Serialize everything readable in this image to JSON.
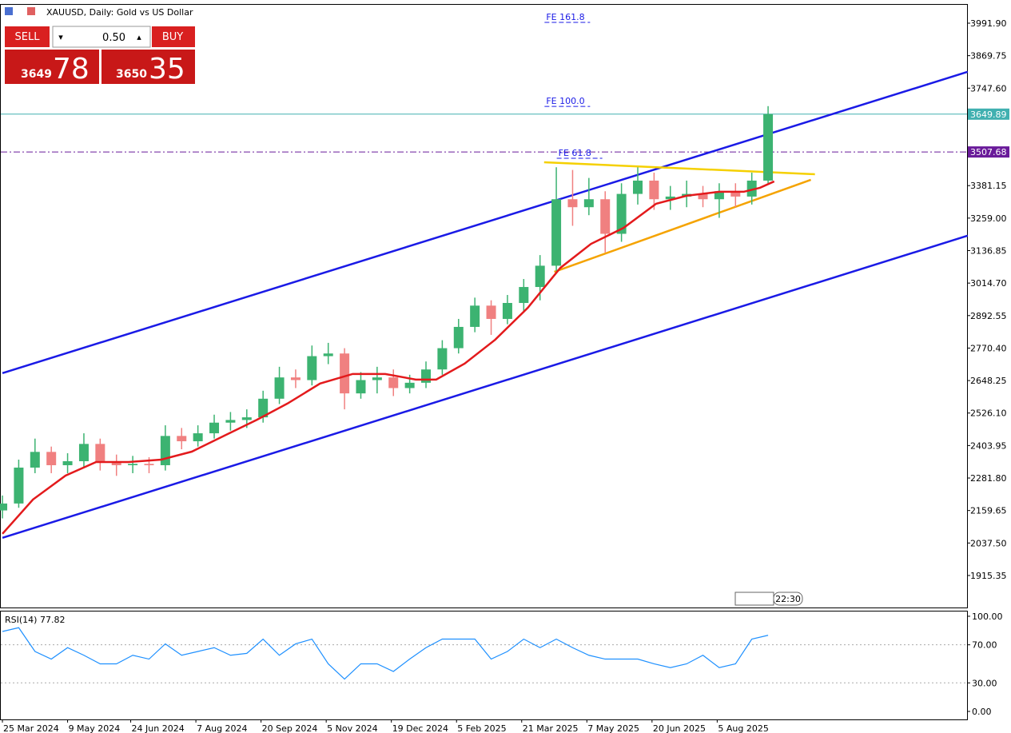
{
  "header": {
    "symbol": "XAUUSD, Daily:  Gold vs US Dollar"
  },
  "trade_panel": {
    "sell": "SELL",
    "buy": "BUY",
    "volume": "0.50",
    "sell_big": "3649",
    "sell_small": "78",
    "buy_big": "3650",
    "buy_small": "35"
  },
  "footer": {
    "time": "22:30"
  },
  "chart_data": {
    "type": "candlestick",
    "xlim": [
      -0.8,
      473.7
    ],
    "ylim": [
      1795,
      4064
    ],
    "xticks": [
      {
        "value": 0,
        "label": "25 Mar 2024"
      },
      {
        "value": 32,
        "label": "9 May 2024"
      },
      {
        "value": 63,
        "label": "24 Jun 2024"
      },
      {
        "value": 95,
        "label": "7 Aug 2024"
      },
      {
        "value": 127,
        "label": "20 Sep 2024"
      },
      {
        "value": 159,
        "label": "5 Nov 2024"
      },
      {
        "value": 191,
        "label": "19 Dec 2024"
      },
      {
        "value": 223,
        "label": "5 Feb 2025"
      },
      {
        "value": 255,
        "label": "21 Mar 2025"
      },
      {
        "value": 287,
        "label": "7 May 2025"
      },
      {
        "value": 319,
        "label": "20 Jun 2025"
      },
      {
        "value": 351,
        "label": "5 Aug 2025"
      }
    ],
    "yticks": [
      {
        "value": 3991.9,
        "label": "3991.90"
      },
      {
        "value": 3869.75,
        "label": "3869.75"
      },
      {
        "value": 3747.6,
        "label": "3747.60"
      },
      {
        "value": 3381.15,
        "label": "3381.15"
      },
      {
        "value": 3259,
        "label": "3259.00"
      },
      {
        "value": 3136.85,
        "label": "3136.85"
      },
      {
        "value": 3014.7,
        "label": "3014.70"
      },
      {
        "value": 2892.55,
        "label": "2892.55"
      },
      {
        "value": 2770.4,
        "label": "2770.40"
      },
      {
        "value": 2648.25,
        "label": "2648.25"
      },
      {
        "value": 2526.1,
        "label": "2526.10"
      },
      {
        "value": 2403.95,
        "label": "2403.95"
      },
      {
        "value": 2281.8,
        "label": "2281.80"
      },
      {
        "value": 2159.65,
        "label": "2159.65"
      },
      {
        "value": 2037.5,
        "label": "2037.50"
      },
      {
        "value": 1915.35,
        "label": "1915.35"
      }
    ],
    "up_color": "#3cb371",
    "down_color": "#f08080",
    "x": [
      0,
      8,
      16,
      24,
      32,
      40,
      48,
      56,
      64,
      72,
      80,
      88,
      96,
      104,
      112,
      120,
      128,
      136,
      144,
      152,
      160,
      168,
      176,
      184,
      192,
      200,
      208,
      216,
      224,
      232,
      240,
      248,
      256,
      264,
      272,
      280,
      288,
      296,
      304,
      312,
      320,
      328,
      336,
      344,
      352,
      360,
      368,
      376
    ],
    "open": [
      2160,
      2186,
      2321,
      2380,
      2330,
      2345,
      2410,
      2340,
      2330,
      2335,
      2330,
      2440,
      2420,
      2450,
      2490,
      2500,
      2510,
      2580,
      2660,
      2650,
      2740,
      2750,
      2600,
      2650,
      2660,
      2620,
      2640,
      2690,
      2770,
      2850,
      2930,
      2880,
      2940,
      3000,
      3080,
      3330,
      3300,
      3330,
      3200,
      3350,
      3400,
      3330,
      3340,
      3350,
      3330,
      3360,
      3340,
      3400
    ],
    "high": [
      2216,
      2351,
      2430,
      2400,
      2375,
      2450,
      2430,
      2370,
      2365,
      2360,
      2480,
      2470,
      2480,
      2520,
      2530,
      2540,
      2610,
      2700,
      2690,
      2780,
      2790,
      2770,
      2680,
      2700,
      2690,
      2670,
      2720,
      2800,
      2880,
      2960,
      2950,
      2970,
      3030,
      3120,
      3450,
      3440,
      3410,
      3360,
      3390,
      3450,
      3430,
      3380,
      3400,
      3380,
      3390,
      3390,
      3430,
      3680
    ],
    "low": [
      2130,
      2170,
      2300,
      2300,
      2300,
      2320,
      2310,
      2290,
      2300,
      2300,
      2310,
      2390,
      2400,
      2430,
      2460,
      2470,
      2490,
      2560,
      2620,
      2630,
      2710,
      2540,
      2580,
      2600,
      2590,
      2600,
      2620,
      2670,
      2750,
      2830,
      2820,
      2860,
      2910,
      2950,
      3060,
      3230,
      3270,
      3130,
      3170,
      3310,
      3290,
      3290,
      3300,
      3300,
      3260,
      3300,
      3310,
      3390
    ],
    "close": [
      2186,
      2321,
      2380,
      2330,
      2345,
      2410,
      2340,
      2330,
      2335,
      2330,
      2440,
      2420,
      2450,
      2490,
      2500,
      2510,
      2580,
      2660,
      2650,
      2740,
      2750,
      2600,
      2650,
      2660,
      2620,
      2640,
      2690,
      2770,
      2850,
      2930,
      2880,
      2940,
      3000,
      3080,
      3330,
      3300,
      3330,
      3200,
      3350,
      3400,
      3330,
      3340,
      3350,
      3330,
      3360,
      3340,
      3400,
      3650
    ],
    "ma": {
      "color": "#e31a1c",
      "x": [
        0,
        15,
        31,
        46,
        62,
        78,
        93,
        109,
        125,
        140,
        156,
        172,
        188,
        203,
        213,
        227,
        242,
        258,
        274,
        289,
        305,
        321,
        336,
        352,
        364,
        372,
        379
      ],
      "values": [
        2072,
        2201,
        2291,
        2342,
        2342,
        2351,
        2381,
        2441,
        2501,
        2562,
        2637,
        2673,
        2673,
        2652,
        2652,
        2712,
        2802,
        2922,
        3072,
        3162,
        3222,
        3313,
        3343,
        3358,
        3358,
        3373,
        3397
      ]
    },
    "trendlines": [
      {
        "color": "#1a1ae6",
        "x": [
          0,
          474
        ],
        "values": [
          2676,
          3809
        ]
      },
      {
        "color": "#1a1ae6",
        "x": [
          0,
          474
        ],
        "values": [
          2057,
          3193
        ]
      },
      {
        "color": "#f5d000",
        "x": [
          266,
          399
        ],
        "values": [
          3469,
          3424
        ]
      },
      {
        "color": "#f5a300",
        "x": [
          271,
          397
        ],
        "values": [
          3057,
          3403
        ]
      }
    ],
    "hlines": [
      {
        "value": 3649.89,
        "color": "#40b0b0",
        "style": "solid"
      },
      {
        "value": 3507.68,
        "color": "#6a1b9a",
        "style": "dashdot"
      }
    ],
    "annotations": [
      {
        "text": "FE 161.8",
        "x": 267,
        "level": 4004
      },
      {
        "text": "FE 100.0",
        "x": 267,
        "level": 3688
      },
      {
        "text": "FE 61.8",
        "x": 273,
        "level": 3493
      }
    ],
    "rsi": {
      "title": "RSI(14) 77.82",
      "color": "#1e90ff",
      "ylim": [
        -8.4,
        105
      ],
      "yticks": [
        {
          "value": 100,
          "label": "100.00"
        },
        {
          "value": 70,
          "label": "70.00"
        },
        {
          "value": 30,
          "label": "30.00"
        },
        {
          "value": 0,
          "label": "0.00"
        }
      ],
      "levels": [
        70,
        30
      ],
      "x": [
        0,
        8,
        16,
        24,
        32,
        40,
        48,
        56,
        64,
        72,
        80,
        88,
        96,
        104,
        112,
        120,
        128,
        136,
        144,
        152,
        160,
        168,
        176,
        184,
        192,
        200,
        208,
        216,
        224,
        232,
        240,
        248,
        256,
        264,
        272,
        280,
        288,
        296,
        304,
        312,
        320,
        328,
        336,
        344,
        352,
        360,
        368,
        376
      ],
      "values": [
        84,
        88,
        63,
        55,
        67,
        59,
        50,
        50,
        59,
        55,
        71,
        59,
        63,
        67,
        59,
        61,
        76,
        59,
        71,
        76,
        50,
        34,
        50,
        50,
        42,
        55,
        67,
        76,
        76,
        76,
        55,
        63,
        76,
        67,
        76,
        67,
        59,
        55,
        55,
        55,
        50,
        46,
        50,
        59,
        46,
        50,
        76,
        80
      ]
    }
  }
}
